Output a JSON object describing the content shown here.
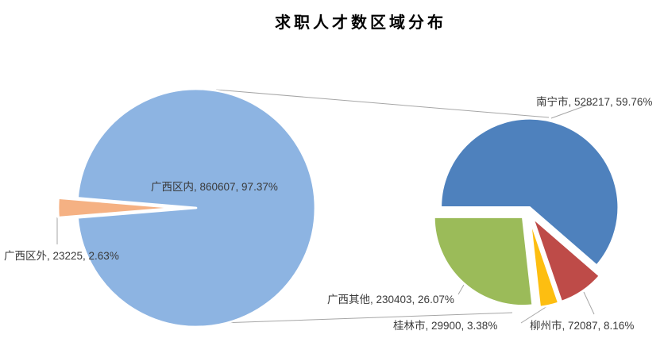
{
  "title": "求职人才数区域分布",
  "chart_data": {
    "type": "pie",
    "variant": "pie-of-pie",
    "title": "求职人才数区域分布",
    "legend": false,
    "background": "#FFFFFF",
    "line_color": "#A6A6A6",
    "label_format": "category, value, percent",
    "total": 883832,
    "main_pie": {
      "slices": [
        {
          "id": "guangxi-inside",
          "label": "广西区内",
          "value": 860607,
          "percent": "97.37%",
          "color": "#8DB4E2"
        },
        {
          "id": "guangxi-outside",
          "label": "广西区外",
          "value": 23225,
          "percent": "2.63%",
          "color": "#F5B183"
        }
      ]
    },
    "secondary_pie": {
      "breakdown_of": "广西区内",
      "slices": [
        {
          "id": "nanning",
          "label": "南宁市",
          "value": 528217,
          "percent": "59.76%",
          "color": "#4E81BD"
        },
        {
          "id": "liuzhou",
          "label": "柳州市",
          "value": 72087,
          "percent": "8.16%",
          "color": "#BE4B48"
        },
        {
          "id": "guilin",
          "label": "桂林市",
          "value": 29900,
          "percent": "3.38%",
          "color": "#FDBE11"
        },
        {
          "id": "guangxi-other",
          "label": "广西其他",
          "value": 230403,
          "percent": "26.07%",
          "color": "#9BBB59"
        }
      ]
    },
    "labels": {
      "main_inner": "广西区内, 860607, 97.37%",
      "main_outer": "广西区外, 23225, 2.63%",
      "nanning": "南宁市, 528217, 59.76%",
      "guangxi_other": "广西其他, 230403, 26.07%",
      "guilin": "桂林市, 29900, 3.38%",
      "liuzhou": "柳州市, 72087, 8.16%"
    }
  }
}
